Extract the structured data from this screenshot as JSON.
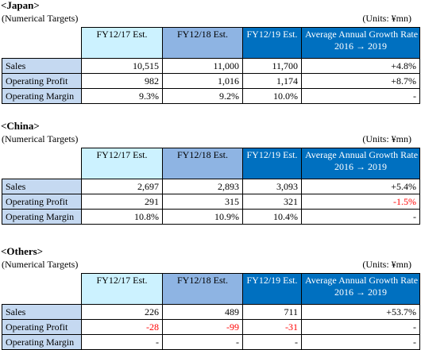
{
  "sections": [
    {
      "title": "<Japan>",
      "subtitle": "(Numerical Targets)",
      "units": "(Units:  ¥mn)",
      "headers": [
        "FY12/17 Est.",
        "FY12/18 Est.",
        "FY12/19 Est.",
        "Average Annual Growth Rate",
        "2016 → 2019"
      ],
      "rows": [
        {
          "label": "Sales",
          "c1": "10,515",
          "c2": "11,000",
          "c3": "11,700",
          "growth": "+4.8%"
        },
        {
          "label": "Operating Profit",
          "c1": "982",
          "c2": "1,016",
          "c3": "1,174",
          "growth": "+8.7%"
        },
        {
          "label": "Operating Margin",
          "c1": "9.3%",
          "c2": "9.2%",
          "c3": "10.0%",
          "growth": "-"
        }
      ]
    },
    {
      "title": "<China>",
      "subtitle": "(Numerical Targets)",
      "units": "(Units:  ¥mn)",
      "headers": [
        "FY12/17 Est.",
        "FY12/18 Est.",
        "FY12/19 Est.",
        "Average Annual Growth Rate",
        "2016 → 2019"
      ],
      "rows": [
        {
          "label": "Sales",
          "c1": "2,697",
          "c2": "2,893",
          "c3": "3,093",
          "growth": "+5.4%"
        },
        {
          "label": "Operating Profit",
          "c1": "291",
          "c2": "315",
          "c3": "321",
          "growth": "-1.5%"
        },
        {
          "label": "Operating Margin",
          "c1": "10.8%",
          "c2": "10.9%",
          "c3": "10.4%",
          "growth": "-"
        }
      ]
    },
    {
      "title": "<Others>",
      "subtitle": "(Numerical Targets)",
      "units": "(Units:  ¥mn)",
      "headers": [
        "FY12/17 Est.",
        "FY12/18 Est.",
        "FY12/19 Est.",
        "Average Annual Growth Rate",
        "2016 → 2019"
      ],
      "rows": [
        {
          "label": "Sales",
          "c1": "226",
          "c2": "489",
          "c3": "711",
          "growth": "+53.7%"
        },
        {
          "label": "Operating Profit",
          "c1": "-28",
          "c2": "-99",
          "c3": "-31",
          "growth": "-"
        },
        {
          "label": "Operating Margin",
          "c1": "-",
          "c2": "-",
          "c3": "-",
          "growth": "-"
        }
      ]
    }
  ],
  "colors": {
    "header_fy17": "#ccf2ff",
    "header_fy18": "#8eb4e3",
    "header_fy19": "#0070c0",
    "header_growth": "#0070c0",
    "row_label": "#c5d9f1",
    "negative_text": "#ff0000"
  }
}
